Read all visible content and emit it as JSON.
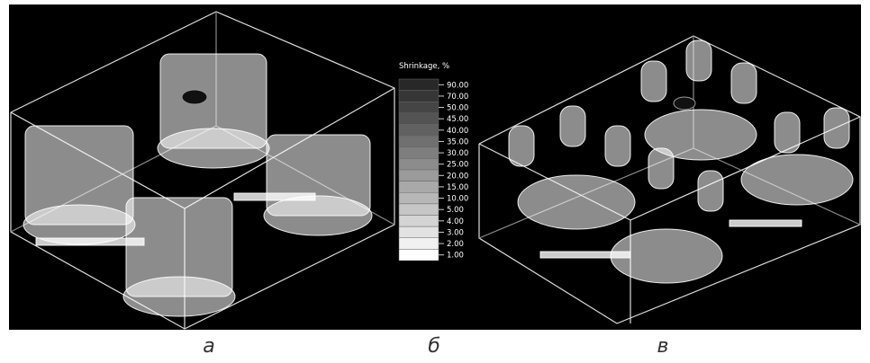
{
  "legend": {
    "title": "Shrinkage, %",
    "levels": [
      "90.00",
      "70.00",
      "50.00",
      "45.00",
      "40.00",
      "35.00",
      "30.00",
      "25.00",
      "20.00",
      "15.00",
      "10.00",
      "5.00",
      "4.00",
      "3.00",
      "2.00",
      "1.00"
    ]
  },
  "captions": [
    "а",
    "б",
    "в"
  ]
}
